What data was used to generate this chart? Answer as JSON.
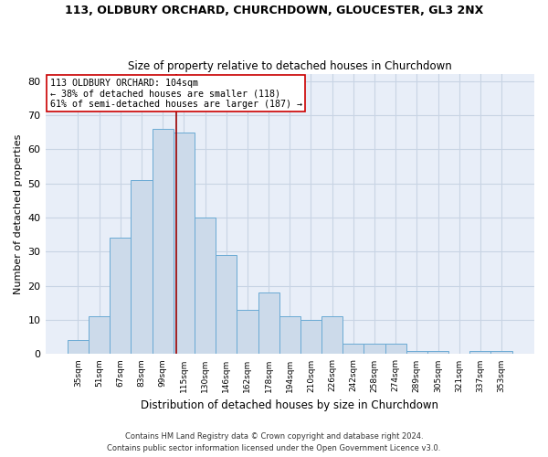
{
  "title1": "113, OLDBURY ORCHARD, CHURCHDOWN, GLOUCESTER, GL3 2NX",
  "title2": "Size of property relative to detached houses in Churchdown",
  "xlabel": "Distribution of detached houses by size in Churchdown",
  "ylabel": "Number of detached properties",
  "categories": [
    "35sqm",
    "51sqm",
    "67sqm",
    "83sqm",
    "99sqm",
    "115sqm",
    "130sqm",
    "146sqm",
    "162sqm",
    "178sqm",
    "194sqm",
    "210sqm",
    "226sqm",
    "242sqm",
    "258sqm",
    "274sqm",
    "289sqm",
    "305sqm",
    "321sqm",
    "337sqm",
    "353sqm"
  ],
  "values": [
    4,
    11,
    34,
    51,
    66,
    65,
    40,
    29,
    13,
    18,
    11,
    10,
    11,
    3,
    3,
    3,
    1,
    1,
    0,
    1,
    1
  ],
  "bar_color": "#ccdaea",
  "bar_edge_color": "#6aaad4",
  "grid_color": "#c8d4e4",
  "background_color": "#e8eef8",
  "vline_x": 4.62,
  "vline_color": "#990000",
  "annotation_line1": "113 OLDBURY ORCHARD: 104sqm",
  "annotation_line2": "← 38% of detached houses are smaller (118)",
  "annotation_line3": "61% of semi-detached houses are larger (187) →",
  "annotation_box_color": "#ffffff",
  "annotation_box_edge": "#cc0000",
  "ylim": [
    0,
    82
  ],
  "yticks": [
    0,
    10,
    20,
    30,
    40,
    50,
    60,
    70,
    80
  ],
  "footer1": "Contains HM Land Registry data © Crown copyright and database right 2024.",
  "footer2": "Contains public sector information licensed under the Open Government Licence v3.0."
}
